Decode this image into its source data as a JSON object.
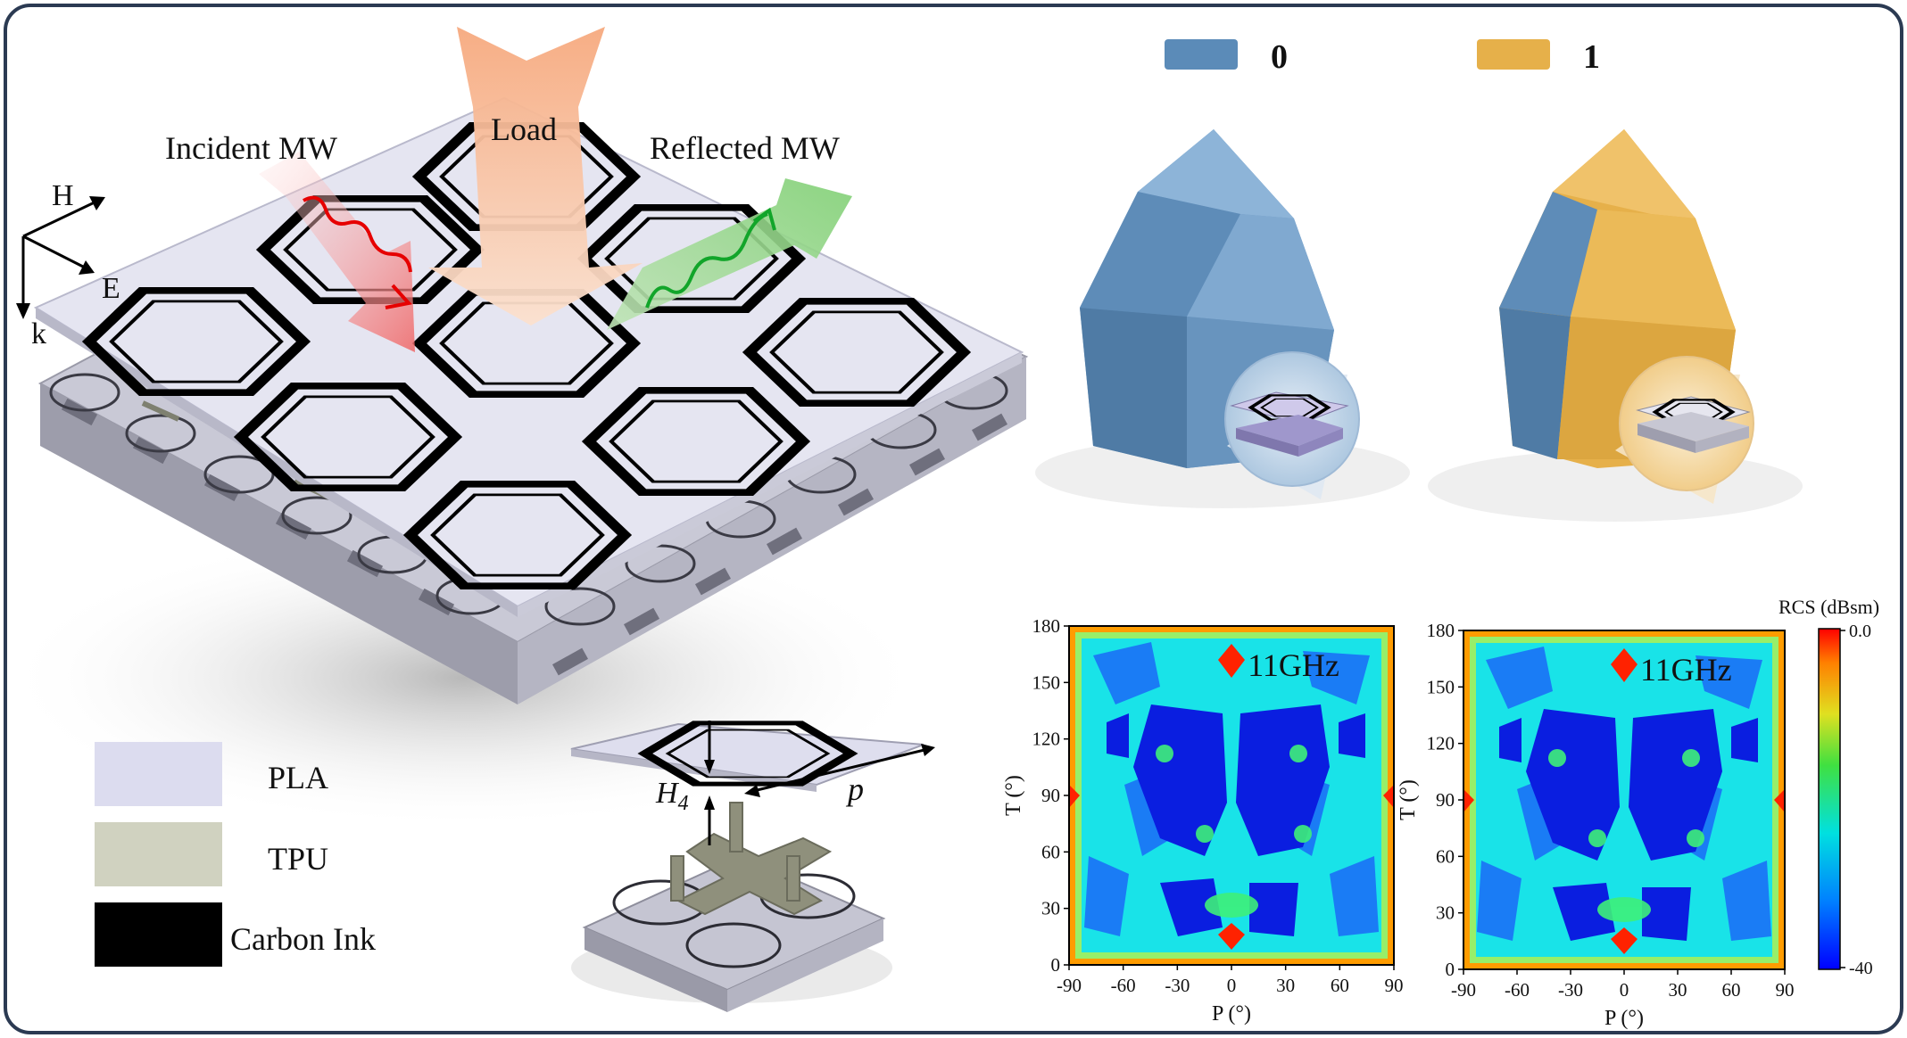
{
  "left_panel": {
    "arrows": {
      "incident": "Incident MW",
      "load": "Load",
      "reflected": "Reflected MW"
    },
    "axes": {
      "h": "H",
      "e": "E",
      "k": "k"
    },
    "legend": [
      {
        "label": "PLA",
        "color": "#dcdcef"
      },
      {
        "label": "TPU",
        "color": "#d0d2c0"
      },
      {
        "label": "Carbon Ink",
        "color": "#000000"
      }
    ],
    "unit_cell_labels": {
      "height": "H4",
      "period": "p"
    }
  },
  "state_legend": [
    {
      "label": "0",
      "color": "#5b8bb8"
    },
    {
      "label": "1",
      "color": "#e6b04a"
    }
  ],
  "colorbar": {
    "title": "RCS (dBsm)",
    "max_label": "0.0",
    "min_label": "-40"
  },
  "chart_data": [
    {
      "type": "heatmap",
      "annotation": "11GHz",
      "xlabel": "P (°)",
      "ylabel": "T (°)",
      "xlim": [
        -90,
        90
      ],
      "ylim": [
        0,
        180
      ],
      "xticks": [
        "-90",
        "-60",
        "-30",
        "0",
        "30",
        "60",
        "90"
      ],
      "yticks": [
        "0",
        "30",
        "60",
        "90",
        "120",
        "150",
        "180"
      ],
      "zlim": [
        -40,
        0
      ]
    },
    {
      "type": "heatmap",
      "annotation": "11GHz",
      "xlabel": "P (°)",
      "ylabel": "T (°)",
      "xlim": [
        -90,
        90
      ],
      "ylim": [
        0,
        180
      ],
      "xticks": [
        "-90",
        "-60",
        "-30",
        "0",
        "30",
        "60",
        "90"
      ],
      "yticks": [
        "0",
        "30",
        "60",
        "90",
        "120",
        "150",
        "180"
      ],
      "zlim": [
        -40,
        0
      ]
    }
  ]
}
